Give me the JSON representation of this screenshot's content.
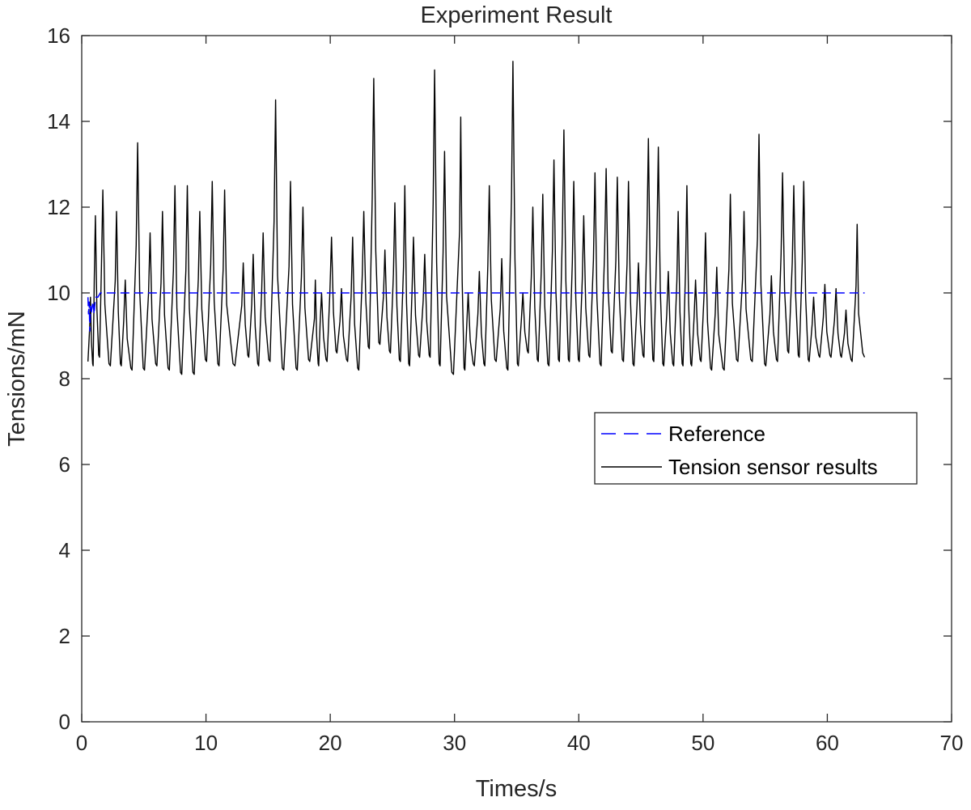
{
  "chart_data": {
    "type": "line",
    "title": "Experiment Result",
    "xlabel": "Times/s",
    "ylabel": "Tensions/mN",
    "xlim": [
      0,
      70
    ],
    "ylim": [
      0,
      16
    ],
    "xticks": [
      0,
      10,
      20,
      30,
      40,
      50,
      60,
      70
    ],
    "yticks": [
      0,
      2,
      4,
      6,
      8,
      10,
      12,
      14,
      16
    ],
    "xtick_labels": [
      "0",
      "10",
      "20",
      "30",
      "40",
      "50",
      "60",
      "70"
    ],
    "ytick_labels": [
      "0",
      "2",
      "4",
      "6",
      "8",
      "10",
      "12",
      "14",
      "16"
    ],
    "grid": false,
    "legend_position": "center-right",
    "series": [
      {
        "name": "Reference",
        "color": "#0000ff",
        "style": "dashed",
        "x": [
          0.5,
          0.55,
          0.6,
          0.65,
          0.7,
          0.75,
          0.8,
          0.85,
          0.9,
          1.0,
          1.1,
          1.3,
          1.5,
          2.0,
          63.0
        ],
        "y": [
          9.9,
          9.5,
          9.8,
          9.1,
          9.7,
          9.5,
          9.6,
          9.7,
          9.8,
          9.5,
          9.9,
          9.9,
          10.0,
          10.0,
          10.0
        ]
      },
      {
        "name": "Tension sensor results",
        "color": "#000000",
        "style": "solid",
        "peaks_x": [
          0.7,
          1.1,
          1.7,
          2.8,
          3.5,
          4.5,
          5.5,
          6.5,
          7.5,
          8.5,
          9.5,
          10.5,
          11.5,
          13.0,
          13.8,
          14.6,
          15.6,
          16.8,
          17.8,
          18.8,
          19.3,
          20.1,
          20.9,
          21.8,
          22.7,
          23.5,
          24.4,
          25.2,
          26.0,
          26.7,
          27.6,
          28.4,
          29.2,
          30.5,
          31.1,
          32.0,
          32.8,
          33.8,
          34.7,
          35.5,
          36.3,
          37.1,
          38.0,
          38.8,
          39.6,
          40.4,
          41.3,
          42.2,
          43.1,
          44.0,
          44.8,
          45.6,
          46.4,
          47.2,
          48.0,
          48.7,
          49.4,
          50.2,
          51.1,
          52.2,
          53.3,
          54.5,
          55.5,
          56.4,
          57.3,
          58.1,
          58.9,
          59.8,
          60.7,
          61.5,
          62.4
        ],
        "peaks_y": [
          9.9,
          11.8,
          12.4,
          11.9,
          10.3,
          13.5,
          11.4,
          11.9,
          12.5,
          12.5,
          11.9,
          12.6,
          12.4,
          10.7,
          10.9,
          11.4,
          14.5,
          12.6,
          12.0,
          10.3,
          10.0,
          11.3,
          10.1,
          11.3,
          11.9,
          15.0,
          11.0,
          12.1,
          12.5,
          11.3,
          10.9,
          15.2,
          13.3,
          14.1,
          10.0,
          10.5,
          12.5,
          10.8,
          15.4,
          10.0,
          12.0,
          12.3,
          13.1,
          13.8,
          12.6,
          11.8,
          12.8,
          12.9,
          12.7,
          12.6,
          10.7,
          13.6,
          13.4,
          10.5,
          11.9,
          12.5,
          10.3,
          11.4,
          10.6,
          12.3,
          11.9,
          13.7,
          10.4,
          12.8,
          12.5,
          12.6,
          9.9,
          10.2,
          10.1,
          9.6,
          11.6
        ],
        "trough_y": [
          8.3,
          8.5,
          8.3,
          8.3,
          8.2,
          8.2,
          8.3,
          8.2,
          8.1,
          8.1,
          8.4,
          8.3,
          8.3,
          8.5,
          8.3,
          8.4,
          8.2,
          8.2,
          8.4,
          8.3,
          8.4,
          8.6,
          8.4,
          8.2,
          8.7,
          8.8,
          8.6,
          8.4,
          8.3,
          8.5,
          8.5,
          8.3,
          8.1,
          8.2,
          8.3,
          8.3,
          8.4,
          8.2,
          8.3,
          8.6,
          8.4,
          8.3,
          8.4,
          8.4,
          8.4,
          8.5,
          8.3,
          8.6,
          8.4,
          8.3,
          8.5,
          8.4,
          8.3,
          8.3,
          8.3,
          8.3,
          8.4,
          8.2,
          8.2,
          8.4,
          8.4,
          8.3,
          8.4,
          8.6,
          8.5,
          8.4,
          8.5,
          8.5,
          8.5,
          8.4,
          8.4
        ],
        "start_y": 8.4,
        "end_x": 63.0,
        "end_y": 8.5
      }
    ]
  }
}
